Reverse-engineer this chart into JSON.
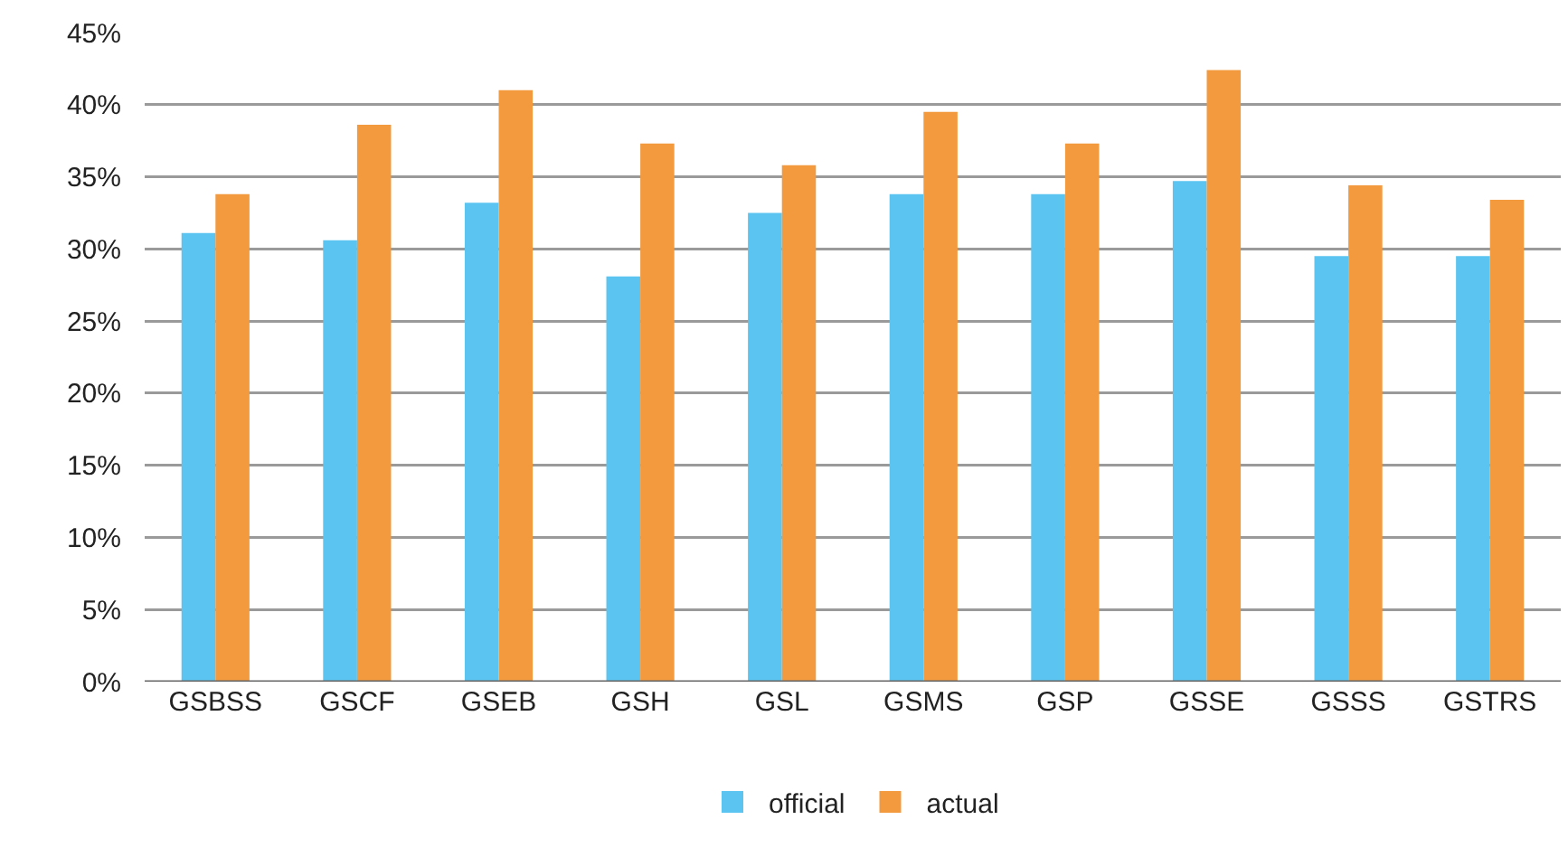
{
  "chart_data": {
    "type": "bar",
    "categories": [
      "GSBSS",
      "GSCF",
      "GSEB",
      "GSH",
      "GSL",
      "GSMS",
      "GSP",
      "GSSE",
      "GSSS",
      "GSTRS"
    ],
    "series": [
      {
        "name": "official",
        "color": "#5bc4f1",
        "values": [
          31.1,
          30.6,
          33.2,
          28.1,
          32.5,
          33.8,
          33.8,
          34.7,
          29.5,
          29.5
        ]
      },
      {
        "name": "actual",
        "color": "#f3993e",
        "values": [
          33.8,
          38.6,
          41.0,
          37.3,
          35.8,
          39.5,
          37.3,
          42.4,
          34.4,
          33.4
        ]
      }
    ],
    "ylim": [
      0,
      45
    ],
    "yticks": [
      {
        "value": 0,
        "label": "0%"
      },
      {
        "value": 5,
        "label": "5%"
      },
      {
        "value": 10,
        "label": "10%"
      },
      {
        "value": 15,
        "label": "15%"
      },
      {
        "value": 20,
        "label": "20%"
      },
      {
        "value": 25,
        "label": "25%"
      },
      {
        "value": 30,
        "label": "30%"
      },
      {
        "value": 35,
        "label": "35%"
      },
      {
        "value": 40,
        "label": "40%"
      },
      {
        "value": 45,
        "label": "45%"
      }
    ],
    "grid": "y",
    "legend": "bottom"
  }
}
